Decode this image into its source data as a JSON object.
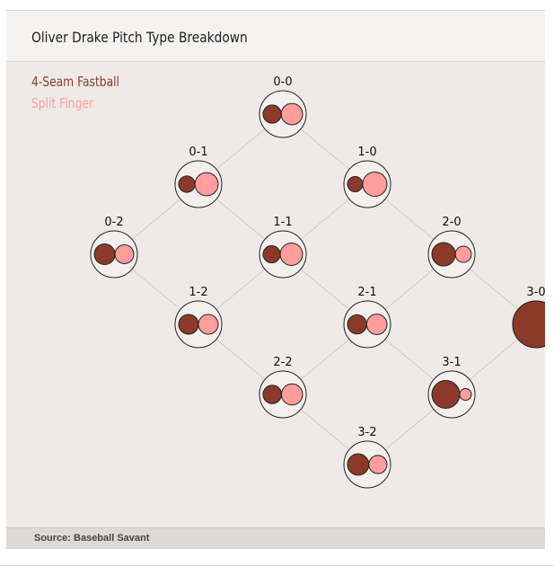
{
  "header": {
    "title": "Oliver Drake Pitch Type Breakdown"
  },
  "footer": {
    "source": "Source: Baseball Savant"
  },
  "chart_data": {
    "type": "count-breakdown",
    "title": "Oliver Drake Pitch Type Breakdown",
    "series": [
      {
        "name": "4-Seam Fastball",
        "color": "#8b3a2a"
      },
      {
        "name": "Split Finger",
        "color": "#ff9c9c"
      }
    ],
    "counts": [
      {
        "count": "0-0",
        "fastball_pct": 42,
        "split_pct": 58
      },
      {
        "count": "0-1",
        "fastball_pct": 33,
        "split_pct": 67
      },
      {
        "count": "1-0",
        "fastball_pct": 28,
        "split_pct": 72
      },
      {
        "count": "0-2",
        "fastball_pct": 55,
        "split_pct": 45
      },
      {
        "count": "1-1",
        "fastball_pct": 37,
        "split_pct": 63
      },
      {
        "count": "2-0",
        "fastball_pct": 68,
        "split_pct": 32
      },
      {
        "count": "1-2",
        "fastball_pct": 50,
        "split_pct": 50
      },
      {
        "count": "2-1",
        "fastball_pct": 47,
        "split_pct": 53
      },
      {
        "count": "3-0",
        "fastball_pct": 100,
        "split_pct": 0
      },
      {
        "count": "2-2",
        "fastball_pct": 43,
        "split_pct": 57
      },
      {
        "count": "3-1",
        "fastball_pct": 85,
        "split_pct": 15
      },
      {
        "count": "3-2",
        "fastball_pct": 58,
        "split_pct": 42
      }
    ],
    "edges": [
      [
        "0-0",
        "0-1"
      ],
      [
        "0-0",
        "1-0"
      ],
      [
        "0-1",
        "0-2"
      ],
      [
        "0-1",
        "1-1"
      ],
      [
        "1-0",
        "1-1"
      ],
      [
        "1-0",
        "2-0"
      ],
      [
        "0-2",
        "1-2"
      ],
      [
        "1-1",
        "1-2"
      ],
      [
        "1-1",
        "2-1"
      ],
      [
        "2-0",
        "2-1"
      ],
      [
        "2-0",
        "3-0"
      ],
      [
        "1-2",
        "2-2"
      ],
      [
        "2-1",
        "2-2"
      ],
      [
        "2-1",
        "3-1"
      ],
      [
        "3-0",
        "3-1"
      ],
      [
        "2-2",
        "3-2"
      ],
      [
        "3-1",
        "3-2"
      ]
    ]
  }
}
